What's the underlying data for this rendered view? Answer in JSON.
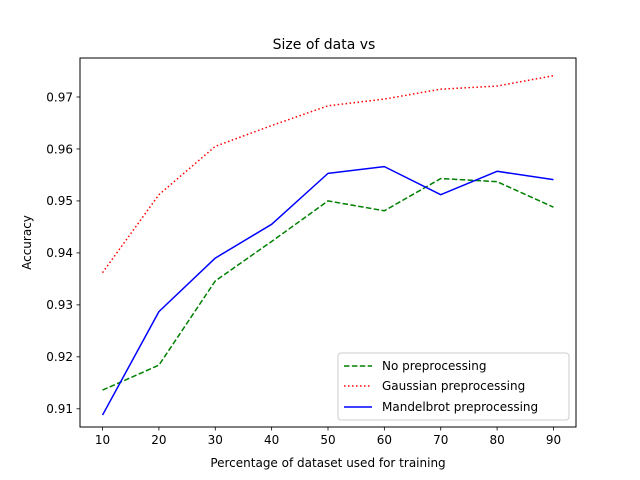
{
  "chart_data": {
    "type": "line",
    "title": "Size of data vs",
    "xlabel": "Percentage of dataset used for training",
    "ylabel": "Accuracy",
    "x": [
      10,
      20,
      30,
      40,
      50,
      60,
      70,
      80,
      90
    ],
    "xticks": [
      "10",
      "20",
      "30",
      "40",
      "50",
      "60",
      "70",
      "80",
      "90"
    ],
    "yticks": [
      "0.91",
      "0.92",
      "0.93",
      "0.94",
      "0.95",
      "0.96",
      "0.97"
    ],
    "xlim": [
      6,
      94
    ],
    "ylim": [
      0.9065,
      0.9775
    ],
    "grid": false,
    "legend_position": "lower-right",
    "series": [
      {
        "name": "No preprocessing",
        "color": "#008000",
        "style": "dashed",
        "values": [
          0.9136,
          0.9184,
          0.9346,
          0.9422,
          0.95,
          0.9481,
          0.9543,
          0.9537,
          0.9488
        ]
      },
      {
        "name": "Gaussian preprocessing",
        "color": "#ff0000",
        "style": "dotted",
        "values": [
          0.9362,
          0.9512,
          0.9605,
          0.9645,
          0.9683,
          0.9696,
          0.9715,
          0.9721,
          0.9741
        ]
      },
      {
        "name": "Mandelbrot preprocessing",
        "color": "#0000ff",
        "style": "solid",
        "values": [
          0.9088,
          0.9287,
          0.939,
          0.9455,
          0.9553,
          0.9566,
          0.9512,
          0.9557,
          0.9541
        ]
      }
    ]
  }
}
